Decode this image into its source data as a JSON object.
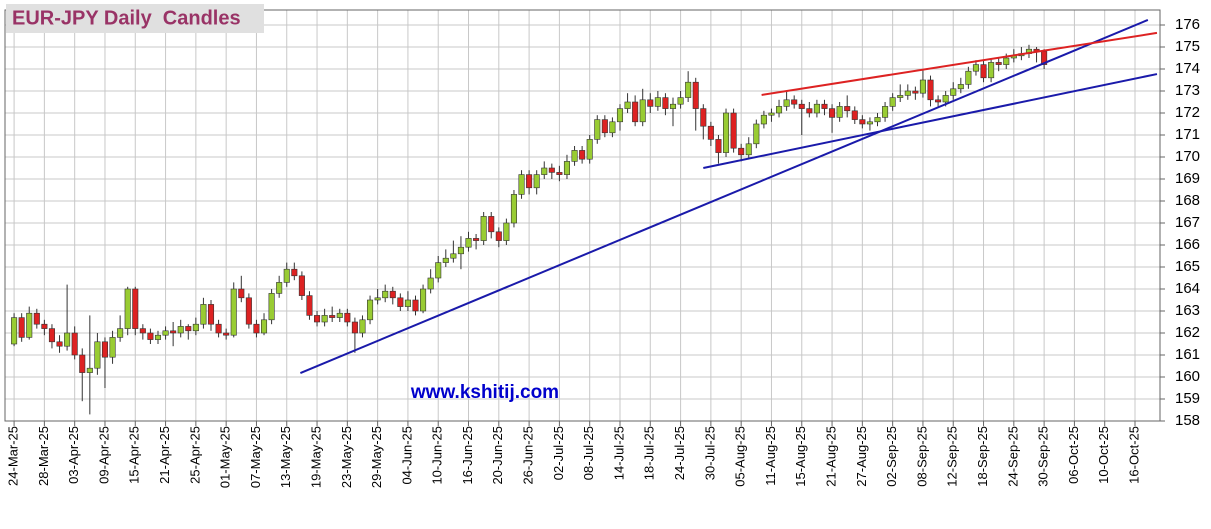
{
  "chart_data": {
    "type": "candlestick",
    "title": "EUR-JPY Daily  Candles",
    "watermark": "www.kshitij.com",
    "up_color": "#99cc33",
    "down_color": "#dd2222",
    "grid": true,
    "ylim": [
      158,
      176
    ],
    "yticks": [
      158,
      159,
      160,
      161,
      162,
      163,
      164,
      165,
      166,
      167,
      168,
      169,
      170,
      171,
      172,
      173,
      174,
      175,
      176
    ],
    "categories": [
      "24-Mar-25",
      null,
      null,
      null,
      "28-Mar-25",
      null,
      null,
      null,
      "03-Apr-25",
      null,
      null,
      null,
      "09-Apr-25",
      null,
      null,
      null,
      "15-Apr-25",
      null,
      null,
      null,
      "21-Apr-25",
      null,
      null,
      null,
      "25-Apr-25",
      null,
      null,
      null,
      "01-May-25",
      null,
      null,
      null,
      "07-May-25",
      null,
      null,
      null,
      "13-May-25",
      null,
      null,
      null,
      "19-May-25",
      null,
      null,
      null,
      "23-May-25",
      null,
      null,
      null,
      "29-May-25",
      null,
      null,
      null,
      "04-Jun-25",
      null,
      null,
      null,
      "10-Jun-25",
      null,
      null,
      null,
      "16-Jun-25",
      null,
      null,
      null,
      "20-Jun-25",
      null,
      null,
      null,
      "26-Jun-25",
      null,
      null,
      null,
      "02-Jul-25",
      null,
      null,
      null,
      "08-Jul-25",
      null,
      null,
      null,
      "14-Jul-25",
      null,
      null,
      null,
      "18-Jul-25",
      null,
      null,
      null,
      "24-Jul-25",
      null,
      null,
      null,
      "30-Jul-25",
      null,
      null,
      null,
      "05-Aug-25",
      null,
      null,
      null,
      "11-Aug-25",
      null,
      null,
      null,
      "15-Aug-25",
      null,
      null,
      null,
      "21-Aug-25",
      null,
      null,
      null,
      "27-Aug-25",
      null,
      null,
      null,
      "02-Sep-25",
      null,
      null,
      null,
      "08-Sep-25",
      null,
      null,
      null,
      "12-Sep-25",
      null,
      null,
      null,
      "18-Sep-25",
      null,
      null,
      null,
      "24-Sep-25",
      null,
      null,
      null,
      "30-Sep-25",
      null,
      null,
      null,
      "06-Oct-25",
      null,
      null,
      null,
      "10-Oct-25",
      null,
      null,
      null,
      "16-Oct-25",
      null
    ],
    "candles": [
      [
        161.5,
        162.9,
        161.4,
        162.7
      ],
      [
        162.7,
        162.9,
        161.6,
        161.8
      ],
      [
        161.8,
        163.2,
        161.7,
        162.9
      ],
      [
        162.9,
        163.1,
        162.2,
        162.4
      ],
      [
        162.4,
        162.6,
        161.9,
        162.2
      ],
      [
        162.2,
        162.4,
        161.3,
        161.6
      ],
      [
        161.6,
        161.9,
        161.1,
        161.4
      ],
      [
        161.4,
        164.2,
        161.2,
        162.0
      ],
      [
        162.0,
        162.3,
        160.8,
        161.0
      ],
      [
        161.0,
        161.3,
        158.9,
        160.2
      ],
      [
        160.2,
        162.8,
        158.3,
        160.4
      ],
      [
        160.4,
        162.0,
        160.1,
        161.6
      ],
      [
        161.6,
        161.8,
        159.5,
        160.9
      ],
      [
        160.9,
        162.1,
        160.6,
        161.8
      ],
      [
        161.8,
        162.8,
        161.6,
        162.2
      ],
      [
        162.2,
        164.1,
        161.9,
        164.0
      ],
      [
        164.0,
        164.1,
        161.9,
        162.2
      ],
      [
        162.2,
        162.4,
        161.7,
        162.0
      ],
      [
        162.0,
        162.2,
        161.5,
        161.7
      ],
      [
        161.7,
        162.1,
        161.5,
        161.9
      ],
      [
        161.9,
        162.3,
        161.7,
        162.1
      ],
      [
        162.1,
        162.5,
        161.4,
        162.0
      ],
      [
        162.0,
        162.6,
        161.8,
        162.3
      ],
      [
        162.3,
        162.4,
        161.7,
        162.1
      ],
      [
        162.1,
        162.7,
        161.9,
        162.4
      ],
      [
        162.4,
        163.6,
        162.2,
        163.3
      ],
      [
        163.3,
        163.5,
        162.1,
        162.4
      ],
      [
        162.4,
        162.6,
        161.8,
        162.0
      ],
      [
        162.0,
        162.2,
        161.7,
        161.9
      ],
      [
        161.9,
        164.3,
        161.8,
        164.0
      ],
      [
        164.0,
        164.6,
        163.4,
        163.6
      ],
      [
        163.6,
        163.8,
        162.2,
        162.4
      ],
      [
        162.4,
        162.6,
        161.8,
        162.0
      ],
      [
        162.0,
        162.9,
        161.9,
        162.6
      ],
      [
        162.6,
        164.0,
        162.4,
        163.8
      ],
      [
        163.8,
        164.6,
        163.6,
        164.3
      ],
      [
        164.3,
        165.2,
        164.1,
        164.9
      ],
      [
        164.9,
        165.2,
        164.4,
        164.6
      ],
      [
        164.6,
        164.8,
        163.5,
        163.7
      ],
      [
        163.7,
        163.9,
        162.6,
        162.8
      ],
      [
        162.8,
        163.0,
        162.3,
        162.5
      ],
      [
        162.5,
        163.1,
        162.3,
        162.8
      ],
      [
        162.8,
        163.2,
        162.5,
        162.7
      ],
      [
        162.7,
        163.1,
        162.5,
        162.9
      ],
      [
        162.9,
        163.1,
        162.3,
        162.5
      ],
      [
        162.5,
        162.7,
        161.1,
        162.0
      ],
      [
        162.0,
        162.8,
        161.8,
        162.6
      ],
      [
        162.6,
        163.7,
        162.4,
        163.5
      ],
      [
        163.5,
        164.0,
        163.3,
        163.6
      ],
      [
        163.6,
        164.2,
        163.4,
        163.9
      ],
      [
        163.9,
        164.1,
        163.3,
        163.6
      ],
      [
        163.6,
        163.8,
        163.0,
        163.2
      ],
      [
        163.2,
        163.9,
        163.0,
        163.5
      ],
      [
        163.5,
        163.7,
        162.8,
        163.0
      ],
      [
        163.0,
        164.2,
        162.9,
        164.0
      ],
      [
        164.0,
        164.9,
        163.8,
        164.5
      ],
      [
        164.5,
        165.5,
        164.3,
        165.2
      ],
      [
        165.2,
        165.8,
        165.0,
        165.4
      ],
      [
        165.4,
        166.2,
        165.2,
        165.6
      ],
      [
        165.6,
        166.4,
        164.9,
        165.9
      ],
      [
        165.9,
        166.6,
        165.7,
        166.3
      ],
      [
        166.3,
        166.5,
        165.8,
        166.2
      ],
      [
        166.2,
        167.5,
        166.0,
        167.3
      ],
      [
        167.3,
        167.5,
        166.3,
        166.6
      ],
      [
        166.6,
        166.8,
        165.9,
        166.2
      ],
      [
        166.2,
        167.2,
        166.0,
        167.0
      ],
      [
        167.0,
        168.5,
        166.8,
        168.3
      ],
      [
        168.3,
        169.4,
        168.1,
        169.2
      ],
      [
        169.2,
        169.4,
        168.3,
        168.6
      ],
      [
        168.6,
        169.4,
        168.3,
        169.2
      ],
      [
        169.2,
        169.8,
        169.0,
        169.5
      ],
      [
        169.5,
        169.7,
        169.0,
        169.3
      ],
      [
        169.3,
        169.6,
        168.9,
        169.2
      ],
      [
        169.2,
        170.1,
        169.0,
        169.8
      ],
      [
        169.8,
        170.5,
        169.6,
        170.3
      ],
      [
        170.3,
        170.5,
        169.7,
        169.9
      ],
      [
        169.9,
        171.0,
        169.7,
        170.8
      ],
      [
        170.8,
        171.9,
        170.6,
        171.7
      ],
      [
        171.7,
        171.9,
        170.9,
        171.1
      ],
      [
        171.1,
        171.8,
        170.9,
        171.6
      ],
      [
        171.6,
        172.4,
        171.2,
        172.2
      ],
      [
        172.2,
        172.9,
        172.0,
        172.5
      ],
      [
        172.5,
        172.8,
        171.4,
        171.6
      ],
      [
        171.6,
        173.1,
        171.4,
        172.6
      ],
      [
        172.6,
        172.9,
        172.0,
        172.3
      ],
      [
        172.3,
        173.0,
        172.1,
        172.7
      ],
      [
        172.7,
        172.9,
        171.9,
        172.2
      ],
      [
        172.2,
        172.7,
        171.4,
        172.4
      ],
      [
        172.4,
        173.0,
        172.2,
        172.7
      ],
      [
        172.7,
        173.9,
        172.5,
        173.4
      ],
      [
        173.4,
        173.6,
        171.2,
        172.2
      ],
      [
        172.2,
        172.4,
        170.8,
        171.4
      ],
      [
        171.4,
        171.6,
        170.5,
        170.8
      ],
      [
        170.8,
        171.0,
        169.7,
        170.2
      ],
      [
        170.2,
        172.2,
        170.0,
        172.0
      ],
      [
        172.0,
        172.2,
        170.2,
        170.4
      ],
      [
        170.4,
        170.6,
        169.8,
        170.1
      ],
      [
        170.1,
        170.9,
        169.9,
        170.6
      ],
      [
        170.6,
        171.7,
        170.4,
        171.5
      ],
      [
        171.5,
        172.1,
        171.3,
        171.9
      ],
      [
        171.9,
        172.2,
        171.6,
        172.0
      ],
      [
        172.0,
        172.6,
        171.8,
        172.3
      ],
      [
        172.3,
        173.0,
        172.1,
        172.6
      ],
      [
        172.6,
        172.8,
        172.2,
        172.4
      ],
      [
        172.4,
        172.6,
        171.0,
        172.2
      ],
      [
        172.2,
        172.5,
        171.8,
        172.0
      ],
      [
        172.0,
        172.6,
        171.8,
        172.4
      ],
      [
        172.4,
        172.6,
        171.9,
        172.2
      ],
      [
        172.2,
        172.4,
        171.1,
        171.8
      ],
      [
        171.8,
        172.5,
        171.6,
        172.3
      ],
      [
        172.3,
        172.8,
        171.8,
        172.1
      ],
      [
        172.1,
        172.3,
        171.5,
        171.7
      ],
      [
        171.7,
        171.9,
        171.3,
        171.5
      ],
      [
        171.5,
        171.8,
        171.2,
        171.6
      ],
      [
        171.6,
        172.0,
        171.4,
        171.8
      ],
      [
        171.8,
        172.5,
        171.6,
        172.3
      ],
      [
        172.3,
        172.9,
        172.1,
        172.7
      ],
      [
        172.7,
        173.3,
        172.5,
        172.8
      ],
      [
        172.8,
        173.3,
        172.6,
        173.0
      ],
      [
        173.0,
        173.2,
        172.6,
        172.9
      ],
      [
        172.9,
        174.0,
        172.7,
        173.5
      ],
      [
        173.5,
        173.7,
        172.3,
        172.6
      ],
      [
        172.6,
        172.8,
        172.3,
        172.5
      ],
      [
        172.5,
        173.0,
        172.3,
        172.8
      ],
      [
        172.8,
        173.4,
        172.6,
        173.1
      ],
      [
        173.1,
        173.6,
        172.9,
        173.3
      ],
      [
        173.3,
        174.1,
        173.1,
        173.9
      ],
      [
        173.9,
        174.4,
        173.7,
        174.2
      ],
      [
        174.2,
        174.4,
        173.4,
        173.6
      ],
      [
        173.6,
        174.5,
        173.4,
        174.3
      ],
      [
        174.3,
        174.5,
        173.9,
        174.2
      ],
      [
        174.2,
        174.7,
        174.0,
        174.5
      ],
      [
        174.5,
        174.9,
        174.3,
        174.6
      ],
      [
        174.6,
        175.0,
        174.4,
        174.7
      ],
      [
        174.7,
        175.1,
        174.5,
        174.9
      ],
      [
        174.9,
        175.0,
        174.3,
        174.8
      ],
      [
        174.8,
        174.9,
        174.0,
        174.2
      ],
      null,
      null,
      null,
      null,
      null,
      null,
      null,
      null,
      null,
      null,
      null,
      null,
      null
    ],
    "trendlines": [
      {
        "color": "#1a1aaa",
        "x": [
          37.8,
          149.7
        ],
        "y": [
          160.18,
          176.23
        ]
      },
      {
        "color": "#1a1aaa",
        "x": [
          91.0,
          150.9
        ],
        "y": [
          169.5,
          173.77
        ]
      },
      {
        "color": "#dd2222",
        "x": [
          98.7,
          150.9
        ],
        "y": [
          172.82,
          175.64
        ]
      }
    ]
  }
}
